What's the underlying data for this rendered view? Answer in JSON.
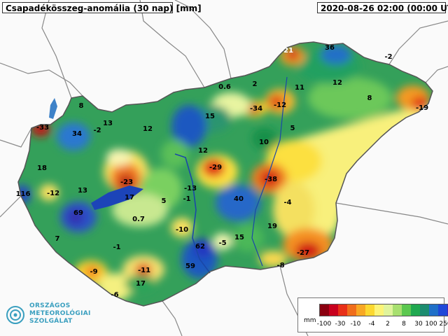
{
  "title": {
    "left": "Csapadékösszeg-anomália (30 nap) [mm]",
    "right": "2020-08-26 02:00 (00:00 UTC)"
  },
  "map": {
    "labels": [
      {
        "text": "-21",
        "tone": "light"
      },
      {
        "text": "36",
        "tone": "dark"
      },
      {
        "text": "-2",
        "tone": "dark"
      },
      {
        "text": "0.6",
        "tone": "dark"
      },
      {
        "text": "2",
        "tone": "dark"
      },
      {
        "text": "11",
        "tone": "dark"
      },
      {
        "text": "12",
        "tone": "dark"
      },
      {
        "text": "8",
        "tone": "dark"
      },
      {
        "text": "-34",
        "tone": "dark"
      },
      {
        "text": "-12",
        "tone": "dark"
      },
      {
        "text": "-19",
        "tone": "dark"
      },
      {
        "text": "8",
        "tone": "dark"
      },
      {
        "text": "15",
        "tone": "dark"
      },
      {
        "text": "5",
        "tone": "dark"
      },
      {
        "text": "-33",
        "tone": "dark"
      },
      {
        "text": "13",
        "tone": "dark"
      },
      {
        "text": "-2",
        "tone": "dark"
      },
      {
        "text": "12",
        "tone": "dark"
      },
      {
        "text": "34",
        "tone": "dark"
      },
      {
        "text": "10",
        "tone": "dark"
      },
      {
        "text": "12",
        "tone": "dark"
      },
      {
        "text": "18",
        "tone": "dark"
      },
      {
        "text": "-29",
        "tone": "dark"
      },
      {
        "text": "-38",
        "tone": "dark"
      },
      {
        "text": "-23",
        "tone": "dark"
      },
      {
        "text": "116",
        "tone": "dark"
      },
      {
        "text": "-12",
        "tone": "dark"
      },
      {
        "text": "13",
        "tone": "dark"
      },
      {
        "text": "-13",
        "tone": "dark"
      },
      {
        "text": "17",
        "tone": "dark"
      },
      {
        "text": "5",
        "tone": "dark"
      },
      {
        "text": "-1",
        "tone": "dark"
      },
      {
        "text": "40",
        "tone": "dark"
      },
      {
        "text": "-4",
        "tone": "dark"
      },
      {
        "text": "69",
        "tone": "dark"
      },
      {
        "text": "0.7",
        "tone": "dark"
      },
      {
        "text": "-10",
        "tone": "dark"
      },
      {
        "text": "19",
        "tone": "dark"
      },
      {
        "text": "7",
        "tone": "dark"
      },
      {
        "text": "62",
        "tone": "dark"
      },
      {
        "text": "-5",
        "tone": "dark"
      },
      {
        "text": "15",
        "tone": "dark"
      },
      {
        "text": "-1",
        "tone": "dark"
      },
      {
        "text": "-27",
        "tone": "dark"
      },
      {
        "text": "59",
        "tone": "dark"
      },
      {
        "text": "-9",
        "tone": "dark"
      },
      {
        "text": "-11",
        "tone": "dark"
      },
      {
        "text": "-8",
        "tone": "dark"
      },
      {
        "text": "17",
        "tone": "dark"
      },
      {
        "text": "-6",
        "tone": "dark"
      }
    ]
  },
  "legend": {
    "unit": "mm",
    "colors": [
      "#8b0010",
      "#c8001e",
      "#e83018",
      "#f06e1c",
      "#f8a824",
      "#fcd830",
      "#fcf478",
      "#e0f49c",
      "#a8e070",
      "#5cc850",
      "#20a850",
      "#1c8c70",
      "#2070c8",
      "#2048d8",
      "#4820b8",
      "#8c30c8",
      "#b440d8",
      "#c868e8"
    ],
    "ticks": [
      "-100",
      "-30",
      "-10",
      "-4",
      "2",
      "8",
      "30",
      "100",
      "250"
    ]
  },
  "logo": {
    "line1": "ORSZÁGOS",
    "line2": "METEOROLÓGIAI",
    "line3": "SZOLGÁLAT"
  }
}
